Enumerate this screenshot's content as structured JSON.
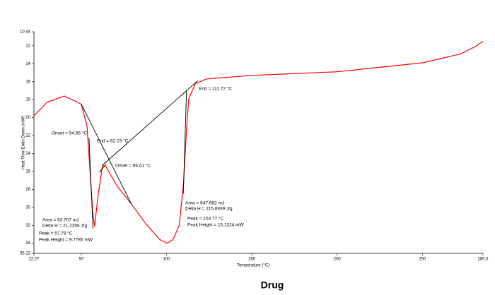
{
  "chart_data": {
    "type": "line",
    "caption": "Drug",
    "x_label": "Temperature (°C)",
    "y_label": "Heat Flow Endo Down (mW)",
    "color": "#ff0000",
    "x": [
      22.27,
      30,
      40,
      50,
      53.4,
      56.7,
      57.79,
      60,
      62.5,
      64.6,
      70.9,
      79.3,
      87.7,
      96.1,
      100.3,
      103.77,
      107.4,
      110,
      111.7,
      113,
      117,
      123.4,
      150,
      200,
      250,
      272.5,
      280.9,
      285.5
    ],
    "values": [
      19.8,
      18.3,
      17.6,
      18.5,
      21.0,
      30.5,
      32.1,
      28.5,
      25.3,
      25.5,
      27.6,
      29.6,
      31.8,
      33.6,
      34.0,
      33.6,
      32.0,
      27.3,
      21.4,
      17.9,
      16.2,
      15.7,
      15.3,
      14.9,
      13.9,
      12.9,
      12.1,
      11.5
    ],
    "tangent_lines": [
      {
        "x": [
          50,
          79.3
        ],
        "values": [
          18.5,
          29.6
        ]
      },
      {
        "x": [
          54.56,
          56.9
        ],
        "values": [
          22.3,
          32.4
        ]
      },
      {
        "x": [
          60.6,
          64.6
        ],
        "values": [
          26.1,
          25.2
        ]
      },
      {
        "x": [
          62.5,
          118.3
        ],
        "values": [
          25.3,
          15.9
        ]
      },
      {
        "x": [
          109.8,
          111.72
        ],
        "values": [
          28.5,
          17.0
        ]
      }
    ],
    "annotations": [
      "Onset = 54.56 °C",
      "End = 62.23 °C",
      "Onset = 66.41 °C",
      "End = 111.72 °C",
      "Area = 63.707 mJ",
      "Delta H = 21.2356 J/g",
      "Peak = 57.79 °C",
      "Peak Height = 9.7785 mW",
      "Area = 647.682 mJ",
      "Delta H = 215.8939 J/g",
      "Peak = 103.77 °C",
      "Peak Height = 15.1324 mW"
    ],
    "xlim": [
      22.27,
      285.5
    ],
    "xticks": [
      22.27,
      50,
      100,
      150,
      200,
      250,
      285.5
    ],
    "ylim": [
      35.13,
      10.44
    ],
    "yticks": [
      10.44,
      12,
      14,
      16,
      18,
      20,
      22,
      24,
      26,
      28,
      30,
      32,
      34,
      35.13
    ]
  }
}
